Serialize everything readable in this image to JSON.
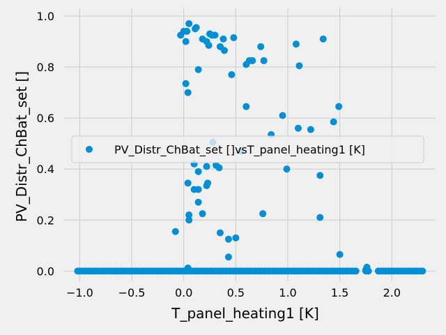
{
  "chart_data": {
    "type": "scatter",
    "title": "",
    "xlabel": "T_panel_heating1 [K]",
    "ylabel": "PV_Distr_ChBat_set []",
    "xlim": [
      -1.15,
      2.42
    ],
    "ylim": [
      -0.04,
      1.03
    ],
    "xticks": [
      -1.0,
      -0.5,
      0.0,
      0.5,
      1.0,
      1.5,
      2.0
    ],
    "xtick_labels": [
      "−1.0",
      "−0.5",
      "0.0",
      "0.5",
      "1.0",
      "1.5",
      "2.0"
    ],
    "yticks": [
      0.0,
      0.2,
      0.4,
      0.6,
      0.8,
      1.0
    ],
    "ytick_labels": [
      "0.0",
      "0.2",
      "0.4",
      "0.6",
      "0.8",
      "1.0"
    ],
    "grid": true,
    "legend_position": "center-right",
    "colors": {
      "marker": "#008fd5",
      "background": "#f0f0f0",
      "grid": "#cbcbcb"
    },
    "series": [
      {
        "name": "PV_Distr_ChBat_set []vsT_panel_heating1 [K]",
        "points": [
          [
            -0.03,
            0.925
          ],
          [
            0.0,
            0.94
          ],
          [
            0.03,
            0.94
          ],
          [
            0.02,
            0.9
          ],
          [
            0.05,
            0.97
          ],
          [
            0.12,
            0.955
          ],
          [
            0.11,
            0.95
          ],
          [
            0.18,
            0.91
          ],
          [
            0.22,
            0.9
          ],
          [
            0.25,
            0.93
          ],
          [
            0.27,
            0.925
          ],
          [
            0.24,
            0.885
          ],
          [
            0.3,
            0.925
          ],
          [
            0.35,
            0.88
          ],
          [
            0.38,
            0.91
          ],
          [
            0.39,
            0.865
          ],
          [
            0.48,
            0.915
          ],
          [
            0.46,
            0.77
          ],
          [
            0.6,
            0.81
          ],
          [
            0.63,
            0.825
          ],
          [
            0.66,
            0.825
          ],
          [
            0.74,
            0.88
          ],
          [
            0.77,
            0.825
          ],
          [
            1.08,
            0.89
          ],
          [
            1.11,
            0.805
          ],
          [
            1.34,
            0.91
          ],
          [
            0.14,
            0.79
          ],
          [
            0.02,
            0.735
          ],
          [
            0.04,
            0.7
          ],
          [
            0.6,
            0.645
          ],
          [
            0.95,
            0.61
          ],
          [
            1.49,
            0.645
          ],
          [
            1.1,
            0.56
          ],
          [
            1.22,
            0.555
          ],
          [
            1.44,
            0.585
          ],
          [
            0.84,
            0.535
          ],
          [
            0.28,
            0.505
          ],
          [
            0.55,
            0.47
          ],
          [
            0.99,
            0.4
          ],
          [
            1.31,
            0.375
          ],
          [
            0.1,
            0.42
          ],
          [
            0.22,
            0.41
          ],
          [
            0.31,
            0.415
          ],
          [
            0.34,
            0.405
          ],
          [
            0.14,
            0.39
          ],
          [
            0.23,
            0.345
          ],
          [
            0.22,
            0.335
          ],
          [
            0.04,
            0.345
          ],
          [
            0.1,
            0.32
          ],
          [
            0.14,
            0.32
          ],
          [
            0.14,
            0.27
          ],
          [
            0.18,
            0.225
          ],
          [
            0.05,
            0.22
          ],
          [
            0.05,
            0.2
          ],
          [
            0.76,
            0.225
          ],
          [
            1.31,
            0.21
          ],
          [
            -0.08,
            0.155
          ],
          [
            0.35,
            0.15
          ],
          [
            0.43,
            0.125
          ],
          [
            0.5,
            0.13
          ],
          [
            0.43,
            0.055
          ],
          [
            1.5,
            0.065
          ],
          [
            0.04,
            0.012
          ],
          [
            1.76,
            0.015
          ],
          [
            1.75,
            0.005
          ]
        ],
        "baseline_cluster": {
          "y": 0.0,
          "x_ranges": [
            [
              -1.02,
              1.66
            ],
            [
              1.75,
              1.78
            ],
            [
              1.87,
              2.3
            ]
          ]
        }
      }
    ]
  }
}
